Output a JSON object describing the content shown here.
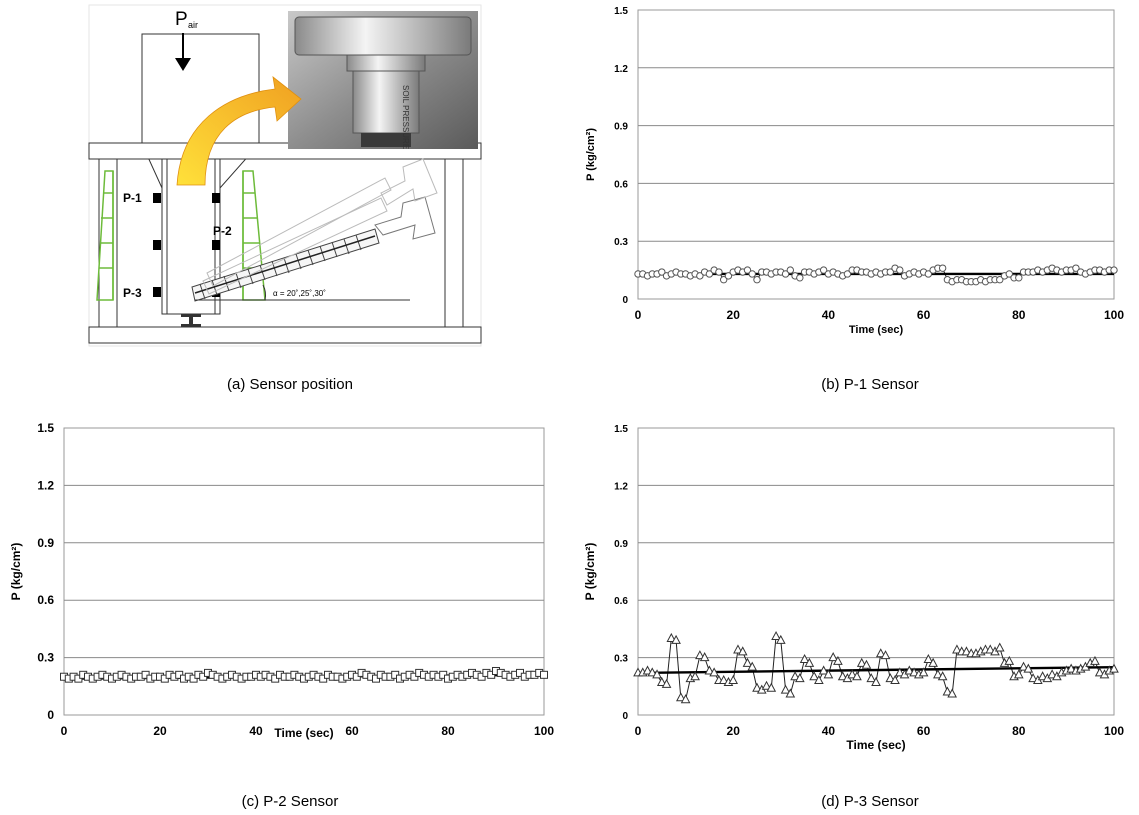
{
  "captions": {
    "a": "(a)  Sensor  position",
    "b": "(b)  P-1  Sensor",
    "c": "(c)  P-2  Sensor",
    "d": "(d)  P-3  Sensor"
  },
  "diagram": {
    "pressure_symbol": "P",
    "pressure_subscript": "air",
    "sensor_labels": [
      "P-1",
      "P-2",
      "P-3"
    ],
    "angle_label": "α = 20˚,25˚,30˚",
    "photo_text": "SOIL PRESSURE"
  },
  "chart_data": [
    {
      "id": "b",
      "type": "line",
      "xlabel": "Time (sec)",
      "ylabel": "P (kg/cm²)",
      "xlim": [
        0,
        100
      ],
      "ylim": [
        0,
        1.5
      ],
      "xticks": [
        "0",
        "20",
        "40",
        "60",
        "80",
        "100"
      ],
      "yticks": [
        "0",
        "0.3",
        "0.6",
        "0.9",
        "1.2",
        "1.5"
      ],
      "marker": "circle",
      "grid": true,
      "trend": [
        0.13,
        0.13
      ],
      "x": [
        0,
        1,
        2,
        3,
        4,
        5,
        6,
        7,
        8,
        9,
        10,
        11,
        12,
        13,
        14,
        15,
        16,
        17,
        18,
        19,
        20,
        21,
        22,
        23,
        24,
        25,
        26,
        27,
        28,
        29,
        30,
        31,
        32,
        33,
        34,
        35,
        36,
        37,
        38,
        39,
        40,
        41,
        42,
        43,
        44,
        45,
        46,
        47,
        48,
        49,
        50,
        51,
        52,
        53,
        54,
        55,
        56,
        57,
        58,
        59,
        60,
        61,
        62,
        63,
        64,
        65,
        66,
        67,
        68,
        69,
        70,
        71,
        72,
        73,
        74,
        75,
        76,
        77,
        78,
        79,
        80,
        81,
        82,
        83,
        84,
        85,
        86,
        87,
        88,
        89,
        90,
        91,
        92,
        93,
        94,
        95,
        96,
        97,
        98,
        99,
        100
      ],
      "values": [
        0.13,
        0.13,
        0.12,
        0.13,
        0.13,
        0.14,
        0.12,
        0.13,
        0.14,
        0.13,
        0.13,
        0.12,
        0.13,
        0.12,
        0.14,
        0.13,
        0.15,
        0.14,
        0.1,
        0.12,
        0.14,
        0.15,
        0.14,
        0.15,
        0.13,
        0.1,
        0.14,
        0.14,
        0.13,
        0.14,
        0.14,
        0.13,
        0.15,
        0.12,
        0.11,
        0.14,
        0.14,
        0.13,
        0.14,
        0.15,
        0.13,
        0.14,
        0.13,
        0.12,
        0.13,
        0.15,
        0.15,
        0.14,
        0.14,
        0.13,
        0.14,
        0.13,
        0.14,
        0.14,
        0.16,
        0.15,
        0.12,
        0.13,
        0.14,
        0.13,
        0.14,
        0.13,
        0.15,
        0.16,
        0.16,
        0.1,
        0.09,
        0.1,
        0.1,
        0.09,
        0.09,
        0.09,
        0.1,
        0.09,
        0.1,
        0.1,
        0.1,
        0.12,
        0.13,
        0.11,
        0.11,
        0.14,
        0.14,
        0.14,
        0.15,
        0.14,
        0.15,
        0.16,
        0.15,
        0.14,
        0.15,
        0.15,
        0.16,
        0.14,
        0.13,
        0.14,
        0.15,
        0.15,
        0.14,
        0.15,
        0.15
      ]
    },
    {
      "id": "c",
      "type": "line",
      "xlabel": "Time (sec)",
      "ylabel": "P (kg/cm²)",
      "xlim": [
        0,
        100
      ],
      "ylim": [
        0,
        1.5
      ],
      "xticks": [
        "0",
        "20",
        "40",
        "60",
        "80",
        "100"
      ],
      "yticks": [
        "0",
        "0.3",
        "0.6",
        "0.9",
        "1.2",
        "1.5"
      ],
      "marker": "square",
      "grid": true,
      "trend": [
        0.19,
        0.21
      ],
      "x": [
        0,
        1,
        2,
        3,
        4,
        5,
        6,
        7,
        8,
        9,
        10,
        11,
        12,
        13,
        14,
        15,
        16,
        17,
        18,
        19,
        20,
        21,
        22,
        23,
        24,
        25,
        26,
        27,
        28,
        29,
        30,
        31,
        32,
        33,
        34,
        35,
        36,
        37,
        38,
        39,
        40,
        41,
        42,
        43,
        44,
        45,
        46,
        47,
        48,
        49,
        50,
        51,
        52,
        53,
        54,
        55,
        56,
        57,
        58,
        59,
        60,
        61,
        62,
        63,
        64,
        65,
        66,
        67,
        68,
        69,
        70,
        71,
        72,
        73,
        74,
        75,
        76,
        77,
        78,
        79,
        80,
        81,
        82,
        83,
        84,
        85,
        86,
        87,
        88,
        89,
        90,
        91,
        92,
        93,
        94,
        95,
        96,
        97,
        98,
        99,
        100
      ],
      "values": [
        0.2,
        0.19,
        0.2,
        0.19,
        0.21,
        0.2,
        0.19,
        0.2,
        0.21,
        0.2,
        0.19,
        0.2,
        0.21,
        0.2,
        0.19,
        0.2,
        0.2,
        0.21,
        0.19,
        0.2,
        0.2,
        0.19,
        0.21,
        0.2,
        0.21,
        0.19,
        0.2,
        0.19,
        0.21,
        0.2,
        0.22,
        0.21,
        0.2,
        0.19,
        0.2,
        0.21,
        0.2,
        0.19,
        0.2,
        0.2,
        0.21,
        0.2,
        0.21,
        0.2,
        0.19,
        0.21,
        0.2,
        0.2,
        0.21,
        0.2,
        0.19,
        0.2,
        0.21,
        0.2,
        0.19,
        0.21,
        0.2,
        0.2,
        0.19,
        0.2,
        0.21,
        0.2,
        0.22,
        0.21,
        0.2,
        0.19,
        0.21,
        0.2,
        0.2,
        0.21,
        0.19,
        0.2,
        0.21,
        0.2,
        0.22,
        0.21,
        0.2,
        0.21,
        0.2,
        0.21,
        0.19,
        0.2,
        0.21,
        0.2,
        0.21,
        0.22,
        0.21,
        0.2,
        0.22,
        0.21,
        0.23,
        0.22,
        0.21,
        0.2,
        0.21,
        0.22,
        0.2,
        0.21,
        0.21,
        0.22,
        0.21
      ]
    },
    {
      "id": "d",
      "type": "line",
      "xlabel": "Time (sec)",
      "ylabel": "P (kg/cm²)",
      "xlim": [
        0,
        100
      ],
      "ylim": [
        0,
        1.5
      ],
      "xticks": [
        "0",
        "20",
        "40",
        "60",
        "80",
        "100"
      ],
      "yticks": [
        "0",
        "0.3",
        "0.6",
        "0.9",
        "1.2",
        "1.5"
      ],
      "marker": "triangle",
      "grid": true,
      "trend": [
        0.22,
        0.25
      ],
      "x": [
        0,
        1,
        2,
        3,
        4,
        5,
        6,
        7,
        8,
        9,
        10,
        11,
        12,
        13,
        14,
        15,
        16,
        17,
        18,
        19,
        20,
        21,
        22,
        23,
        24,
        25,
        26,
        27,
        28,
        29,
        30,
        31,
        32,
        33,
        34,
        35,
        36,
        37,
        38,
        39,
        40,
        41,
        42,
        43,
        44,
        45,
        46,
        47,
        48,
        49,
        50,
        51,
        52,
        53,
        54,
        55,
        56,
        57,
        58,
        59,
        60,
        61,
        62,
        63,
        64,
        65,
        66,
        67,
        68,
        69,
        70,
        71,
        72,
        73,
        74,
        75,
        76,
        77,
        78,
        79,
        80,
        81,
        82,
        83,
        84,
        85,
        86,
        87,
        88,
        89,
        90,
        91,
        92,
        93,
        94,
        95,
        96,
        97,
        98,
        99,
        100
      ],
      "values": [
        0.22,
        0.22,
        0.23,
        0.22,
        0.21,
        0.17,
        0.16,
        0.4,
        0.39,
        0.09,
        0.08,
        0.19,
        0.2,
        0.31,
        0.3,
        0.23,
        0.22,
        0.18,
        0.18,
        0.17,
        0.18,
        0.34,
        0.33,
        0.27,
        0.25,
        0.14,
        0.13,
        0.15,
        0.14,
        0.41,
        0.39,
        0.13,
        0.11,
        0.2,
        0.19,
        0.29,
        0.27,
        0.2,
        0.18,
        0.23,
        0.21,
        0.3,
        0.28,
        0.2,
        0.19,
        0.21,
        0.2,
        0.27,
        0.26,
        0.19,
        0.17,
        0.32,
        0.31,
        0.19,
        0.18,
        0.22,
        0.21,
        0.23,
        0.22,
        0.21,
        0.22,
        0.29,
        0.27,
        0.21,
        0.2,
        0.12,
        0.11,
        0.34,
        0.33,
        0.33,
        0.32,
        0.32,
        0.33,
        0.34,
        0.34,
        0.33,
        0.35,
        0.27,
        0.28,
        0.2,
        0.21,
        0.25,
        0.24,
        0.19,
        0.18,
        0.2,
        0.19,
        0.21,
        0.2,
        0.22,
        0.23,
        0.24,
        0.23,
        0.24,
        0.25,
        0.27,
        0.28,
        0.22,
        0.21,
        0.23,
        0.24
      ]
    }
  ],
  "colors": {
    "axis": "#9a9a9a",
    "grid": "#8a8a8a",
    "series": "#000000",
    "marker_fill": "#ffffff",
    "marker_stroke": "#555555",
    "load_diagram": "#6dbb3a",
    "arrow": "#f0a021"
  }
}
